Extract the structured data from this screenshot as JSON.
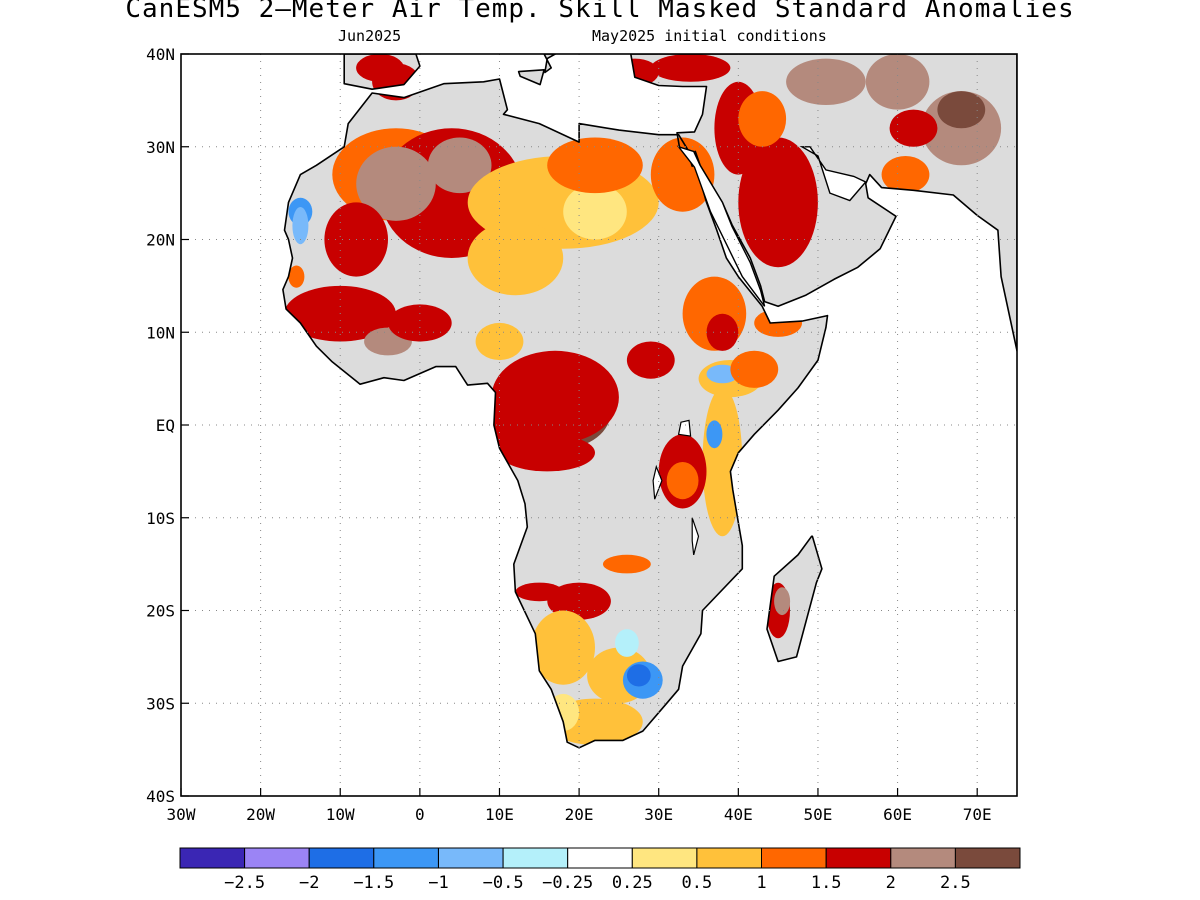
{
  "title": "CanESM5 2–Meter Air Temp. Skill Masked Standard Anomalies",
  "subtitle_left": "Jun2025",
  "subtitle_right": "May2025 initial conditions",
  "map": {
    "lon_range": [
      -30,
      75
    ],
    "lat_range": [
      -40,
      40
    ],
    "lon_ticks": [
      {
        "v": -30,
        "label": "30W"
      },
      {
        "v": -20,
        "label": "20W"
      },
      {
        "v": -10,
        "label": "10W"
      },
      {
        "v": 0,
        "label": "0"
      },
      {
        "v": 10,
        "label": "10E"
      },
      {
        "v": 20,
        "label": "20E"
      },
      {
        "v": 30,
        "label": "30E"
      },
      {
        "v": 40,
        "label": "40E"
      },
      {
        "v": 50,
        "label": "50E"
      },
      {
        "v": 60,
        "label": "60E"
      },
      {
        "v": 70,
        "label": "70E"
      }
    ],
    "lat_ticks": [
      {
        "v": 40,
        "label": "40N"
      },
      {
        "v": 30,
        "label": "30N"
      },
      {
        "v": 20,
        "label": "20N"
      },
      {
        "v": 10,
        "label": "10N"
      },
      {
        "v": 0,
        "label": "EQ"
      },
      {
        "v": -10,
        "label": "10S"
      },
      {
        "v": -20,
        "label": "20S"
      },
      {
        "v": -30,
        "label": "30S"
      },
      {
        "v": -40,
        "label": "40S"
      }
    ],
    "grid": true,
    "colors": {
      "masked": "#dcdcdc",
      "c_0_25_0_5": "#ffe680",
      "c_0_5_1": "#ffc13a",
      "c_1_1_5": "#ff6700",
      "c_1_5_2": "#c80000",
      "c_2_2_5": "#b48a7d",
      "c_gt_2_5": "#7a4a3c",
      "c_n0_25_n0_5": "#b4f0fa",
      "c_n0_5_n1": "#78b9fa",
      "c_n1_n1_5": "#3c97f5",
      "c_n1_5_n2": "#1e6ee6"
    }
  },
  "colorbar": {
    "colors": [
      "#3a26b4",
      "#9b84f5",
      "#1e6ee6",
      "#3c97f5",
      "#78b9fa",
      "#b4f0fa",
      "#ffffff",
      "#ffe680",
      "#ffc13a",
      "#ff6700",
      "#c80000",
      "#b48a7d",
      "#7a4a3c"
    ],
    "labels": [
      "−2.5",
      "−2",
      "−1.5",
      "−1",
      "−0.5",
      "−0.25",
      "0.25",
      "0.5",
      "1",
      "1.5",
      "2",
      "2.5"
    ]
  }
}
